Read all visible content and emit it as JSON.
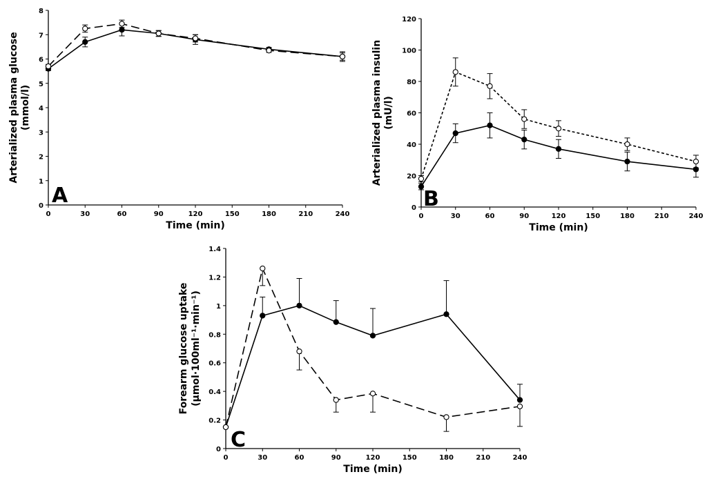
{
  "chart_data": [
    {
      "panel": "A",
      "type": "line",
      "xlabel": "Time (min)",
      "ylabel": [
        "Arterialized plasma glucose",
        "(mmol/l)"
      ],
      "xlim": [
        0,
        240
      ],
      "ylim": [
        0,
        8
      ],
      "xticks": [
        "0",
        "30",
        "60",
        "90",
        "120",
        "150",
        "180",
        "210",
        "240"
      ],
      "yticks": [
        "0",
        "1",
        "2",
        "3",
        "4",
        "5",
        "6",
        "7",
        "8"
      ],
      "grid": false,
      "series": [
        {
          "marker": "filled",
          "line": "solid",
          "x": [
            0,
            30,
            60,
            90,
            120,
            180,
            240
          ],
          "y": [
            5.6,
            6.7,
            7.2,
            7.05,
            6.8,
            6.4,
            6.1
          ],
          "err": [
            0.08,
            0.2,
            0.25,
            0.12,
            0.2,
            0.08,
            0.2
          ]
        },
        {
          "marker": "open",
          "line": "dashed",
          "x": [
            0,
            30,
            60,
            90,
            120,
            180,
            240
          ],
          "y": [
            5.7,
            7.25,
            7.45,
            7.05,
            6.85,
            6.35,
            6.1
          ],
          "err": [
            0.08,
            0.15,
            0.15,
            0.12,
            0.15,
            0.08,
            0.15
          ]
        }
      ]
    },
    {
      "panel": "B",
      "type": "line",
      "xlabel": "Time (min)",
      "ylabel": [
        "Arterialized plasma insulin",
        "(mU/l)"
      ],
      "xlim": [
        0,
        240
      ],
      "ylim": [
        0,
        120
      ],
      "xticks": [
        "0",
        "30",
        "60",
        "90",
        "120",
        "150",
        "180",
        "210",
        "240"
      ],
      "yticks": [
        "0",
        "20",
        "40",
        "60",
        "80",
        "100",
        "120"
      ],
      "grid": false,
      "series": [
        {
          "marker": "filled",
          "line": "solid",
          "x": [
            0,
            30,
            60,
            90,
            120,
            180,
            240
          ],
          "y": [
            13,
            47,
            52,
            43,
            37,
            29,
            24
          ],
          "err": [
            2,
            6,
            8,
            6,
            6,
            6,
            5
          ]
        },
        {
          "marker": "open",
          "line": "dotted",
          "x": [
            0,
            30,
            60,
            90,
            120,
            180,
            240
          ],
          "y": [
            18,
            86,
            77,
            56,
            50,
            40,
            29
          ],
          "err": [
            2,
            9,
            8,
            6,
            5,
            4,
            4
          ]
        }
      ]
    },
    {
      "panel": "C",
      "type": "line",
      "xlabel": "Time (min)",
      "ylabel": [
        "Forearm glucose uptake",
        "(µmol·100ml⁻¹·min⁻¹)"
      ],
      "xlim": [
        0,
        240
      ],
      "ylim": [
        0,
        1.4
      ],
      "xticks": [
        "0",
        "30",
        "60",
        "90",
        "120",
        "150",
        "180",
        "210",
        "240"
      ],
      "yticks": [
        "0",
        "0.2",
        "0.4",
        "0.6",
        "0.8",
        "1",
        "1.2",
        "1.4"
      ],
      "grid": false,
      "series": [
        {
          "marker": "filled",
          "line": "solid",
          "x": [
            0,
            30,
            60,
            90,
            120,
            180,
            240
          ],
          "y": [
            0.15,
            0.93,
            1.0,
            0.885,
            0.79,
            0.94,
            0.34
          ],
          "err_up": [
            0,
            0.13,
            0.19,
            0.15,
            0.19,
            0.235,
            0.11
          ],
          "err_down": [
            0,
            0,
            0,
            0,
            0,
            0,
            0
          ]
        },
        {
          "marker": "open",
          "line": "dashed",
          "x": [
            0,
            30,
            60,
            90,
            120,
            180,
            240
          ],
          "y": [
            0.15,
            1.26,
            0.68,
            0.34,
            0.385,
            0.22,
            0.295
          ],
          "err_up": [
            0,
            0,
            0,
            0,
            0,
            0,
            0
          ],
          "err_down": [
            0,
            0.12,
            0.13,
            0.085,
            0.13,
            0.1,
            0.14
          ]
        }
      ]
    }
  ]
}
